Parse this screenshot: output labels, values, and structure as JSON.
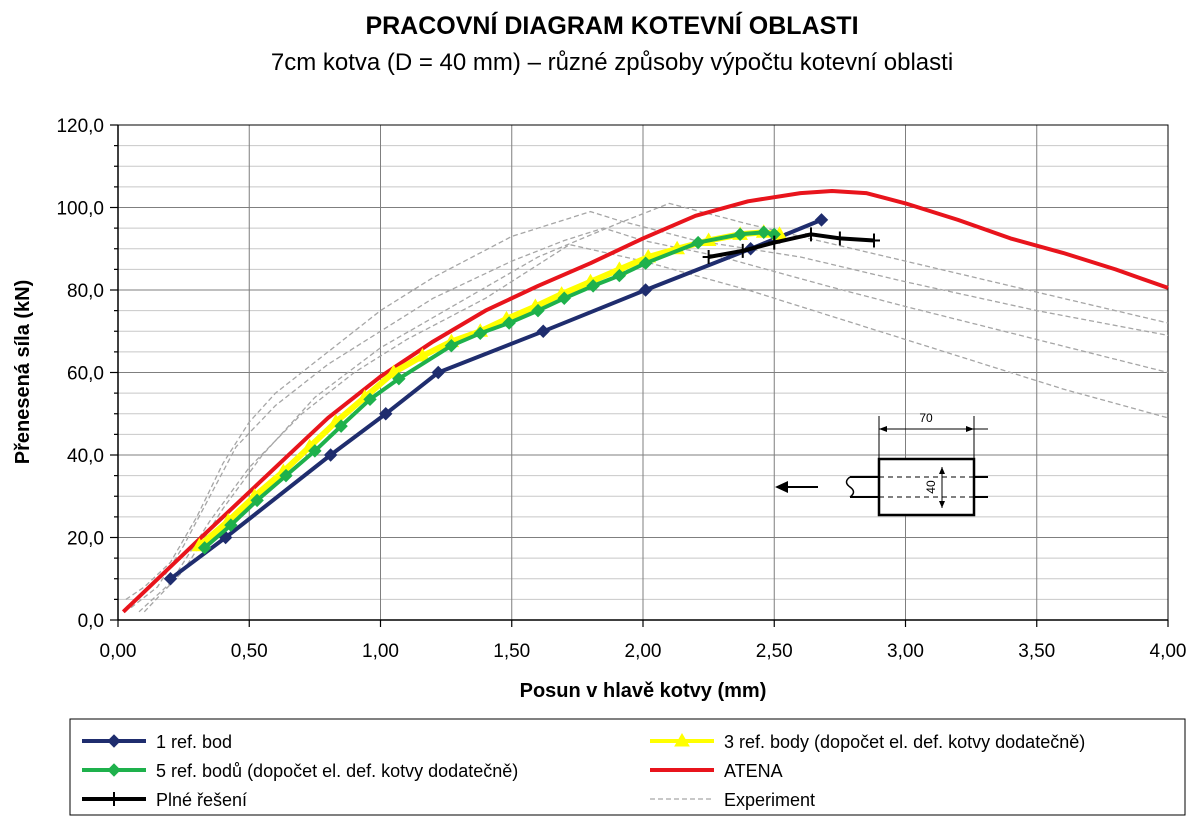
{
  "chart_data": {
    "type": "line",
    "title": "PRACOVNÍ DIAGRAM KOTEVNÍ OBLASTI",
    "subtitle": "7cm kotva (D = 40 mm) – různé způsoby výpočtu kotevní oblasti",
    "xlabel": "Posun v hlavě kotvy (mm)",
    "ylabel": "Přenesená síla (kN)",
    "xlim": [
      0,
      4
    ],
    "ylim": [
      0,
      120
    ],
    "xticks": [
      "0,00",
      "0,50",
      "1,00",
      "1,50",
      "2,00",
      "2,50",
      "3,00",
      "3,50",
      "4,00"
    ],
    "yticks": [
      "0,0",
      "20,0",
      "40,0",
      "60,0",
      "80,0",
      "100,0",
      "120,0"
    ],
    "grid": true,
    "legend_position": "bottom",
    "series": [
      {
        "name": "1 ref. bod",
        "color": "#1f2d6e",
        "marker": "diamond",
        "x": [
          0.2,
          0.41,
          0.81,
          1.02,
          1.22,
          1.62,
          2.01,
          2.41,
          2.68
        ],
        "y": [
          10,
          20,
          40,
          50,
          60,
          70,
          80,
          90,
          97
        ]
      },
      {
        "name": "3 ref. body (dopočet el. def. kotvy dodatečně)",
        "color": "#ffff00",
        "marker": "triangle",
        "x": [
          0.31,
          0.42,
          0.52,
          0.63,
          0.73,
          0.83,
          0.94,
          1.05,
          1.16,
          1.27,
          1.38,
          1.48,
          1.59,
          1.69,
          1.8,
          1.91,
          2.02,
          2.13,
          2.25,
          2.37,
          2.46,
          2.52
        ],
        "y": [
          18,
          24,
          30,
          36,
          42,
          48,
          54,
          60,
          64,
          67.5,
          70,
          73,
          76,
          79,
          82,
          85,
          88,
          90,
          92,
          93.5,
          94,
          93.5
        ]
      },
      {
        "name": "5 ref. bodů (dopočet el. def. kotvy dodatečně)",
        "color": "#1eb14c",
        "marker": "diamond",
        "x": [
          0.33,
          0.43,
          0.53,
          0.64,
          0.75,
          0.85,
          0.96,
          1.07,
          1.27,
          1.38,
          1.49,
          1.6,
          1.7,
          1.81,
          1.91,
          2.01,
          2.21,
          2.37,
          2.46,
          2.5
        ],
        "y": [
          17.5,
          23,
          29,
          35,
          41,
          47,
          53.5,
          58.5,
          66.5,
          69.5,
          72,
          75,
          78,
          81,
          83.5,
          86.5,
          91.5,
          93.5,
          94,
          93.5
        ]
      },
      {
        "name": "ATENA",
        "color": "#e8141c",
        "marker": "none",
        "x": [
          0.02,
          0.3,
          0.5,
          0.7,
          0.8,
          1.0,
          1.2,
          1.4,
          1.6,
          1.8,
          2.0,
          2.2,
          2.4,
          2.6,
          2.72,
          2.85,
          3.0,
          3.2,
          3.4,
          3.6,
          3.8,
          4.0
        ],
        "y": [
          2,
          19,
          31,
          43,
          49,
          59,
          67.5,
          75,
          81,
          86.5,
          92.5,
          98,
          101.5,
          103.5,
          104,
          103.5,
          101,
          97,
          92.5,
          89,
          85,
          80.5
        ]
      },
      {
        "name": "Plné řešení",
        "color": "#000000",
        "marker": "plus",
        "x": [
          2.25,
          2.38,
          2.5,
          2.64,
          2.75,
          2.88
        ],
        "y": [
          88,
          89.5,
          91.5,
          93.5,
          92.5,
          92
        ]
      },
      {
        "name": "Experiment",
        "color": "#a6a6a6",
        "marker": "none",
        "dashed": true,
        "curves": [
          {
            "x": [
              0.03,
              0.1,
              0.2,
              0.3,
              0.4,
              0.5,
              0.6,
              0.8,
              1.0,
              1.2,
              1.5,
              1.8,
              1.9,
              2.2,
              2.6,
              3.0,
              3.5,
              4.0
            ],
            "y": [
              5,
              8,
              14,
              25,
              38,
              48,
              55,
              65,
              75,
              83,
              93,
              99,
              97,
              92,
              88,
              82,
              75,
              69
            ]
          },
          {
            "x": [
              0.05,
              0.15,
              0.25,
              0.35,
              0.45,
              0.6,
              0.8,
              1.0,
              1.2,
              1.5,
              1.7,
              1.85,
              2.0,
              2.3,
              2.7,
              3.0,
              3.5,
              4.0
            ],
            "y": [
              3,
              8,
              18,
              30,
              42,
              52,
              62,
              70,
              78,
              87,
              92,
              95,
              92,
              88,
              81,
              76,
              68,
              60
            ]
          },
          {
            "x": [
              0.08,
              0.2,
              0.35,
              0.5,
              0.7,
              0.9,
              1.1,
              1.4,
              1.72,
              2.0,
              2.4,
              2.8,
              3.2,
              3.6,
              4.0
            ],
            "y": [
              2,
              9,
              24,
              37,
              50,
              60,
              68,
              78,
              91,
              87,
              80,
              72,
              64,
              56,
              49
            ]
          },
          {
            "x": [
              0.1,
              0.25,
              0.4,
              0.55,
              0.75,
              1.0,
              1.3,
              1.6,
              1.9,
              2.1,
              2.4,
              2.8,
              3.2,
              3.6,
              4.0
            ],
            "y": [
              2,
              12,
              27,
              40,
              54,
              66,
              77,
              88,
              96,
              101,
              96,
              90,
              84,
              78,
              72
            ]
          }
        ]
      }
    ]
  },
  "inset": {
    "dim_length": "70",
    "dim_diameter": "40"
  }
}
